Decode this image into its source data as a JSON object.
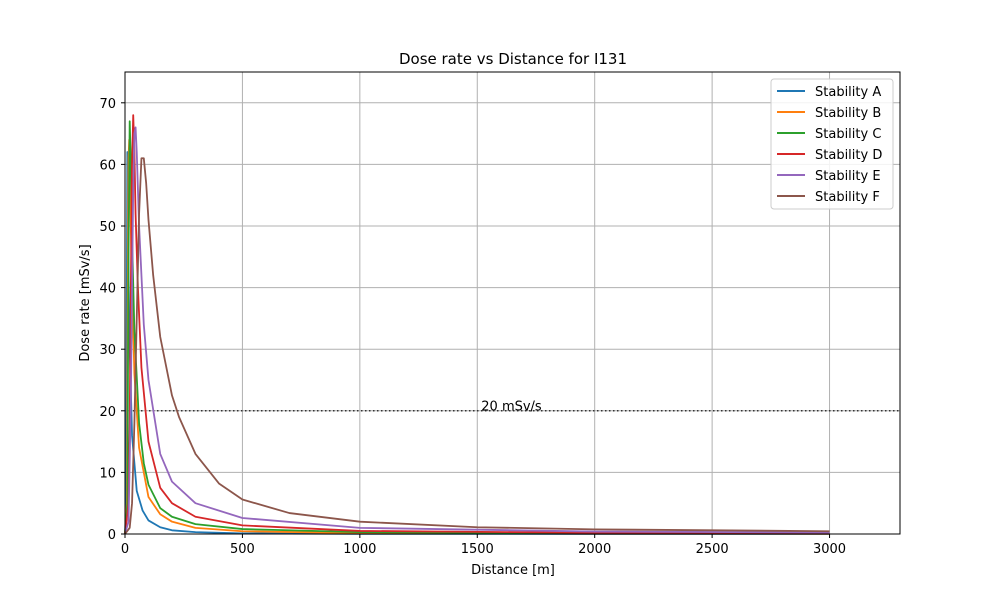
{
  "chart_data": {
    "type": "line",
    "title": "Dose rate vs Distance for I131",
    "xlabel": "Distance [m]",
    "ylabel": "Dose rate [mSv/s]",
    "xlim": [
      0,
      3300
    ],
    "ylim": [
      0,
      75
    ],
    "xticks": [
      0,
      500,
      1000,
      1500,
      2000,
      2500,
      3000
    ],
    "yticks": [
      0,
      10,
      20,
      30,
      40,
      50,
      60,
      70
    ],
    "grid": true,
    "legend_position": "top-right",
    "reference_line": {
      "y": 20,
      "label": "20 mSv/s",
      "label_x": 1500,
      "style": "dotted",
      "color": "#333333"
    },
    "series": [
      {
        "name": "Stability A",
        "color": "#1f77b4",
        "x": [
          0,
          5,
          8,
          10,
          12,
          15,
          20,
          30,
          50,
          75,
          100,
          150,
          200,
          300,
          500,
          1000,
          2000,
          3000
        ],
        "y": [
          0,
          5,
          40,
          62,
          55,
          42,
          30,
          16,
          7,
          3.8,
          2.2,
          1.1,
          0.6,
          0.3,
          0.1,
          0.03,
          0.01,
          0
        ]
      },
      {
        "name": "Stability B",
        "color": "#ff7f0e",
        "x": [
          0,
          8,
          12,
          15,
          18,
          22,
          30,
          40,
          60,
          100,
          150,
          200,
          300,
          500,
          1000,
          2000,
          3000
        ],
        "y": [
          0,
          5,
          40,
          61,
          64,
          55,
          40,
          26,
          14,
          6,
          3.2,
          2,
          1,
          0.45,
          0.15,
          0.05,
          0.03
        ]
      },
      {
        "name": "Stability C",
        "color": "#2ca02c",
        "x": [
          0,
          10,
          15,
          20,
          25,
          30,
          40,
          60,
          80,
          100,
          150,
          200,
          300,
          500,
          1000,
          2000,
          3000
        ],
        "y": [
          0,
          5,
          45,
          67,
          60,
          48,
          33,
          18,
          11.5,
          8,
          4.2,
          2.8,
          1.6,
          0.8,
          0.3,
          0.12,
          0.07
        ]
      },
      {
        "name": "Stability D",
        "color": "#d62728",
        "x": [
          0,
          15,
          20,
          25,
          30,
          35,
          40,
          45,
          55,
          70,
          100,
          150,
          200,
          300,
          500,
          1000,
          2000,
          3000
        ],
        "y": [
          0,
          5,
          18,
          40,
          60,
          68,
          62,
          52,
          40,
          27,
          15,
          7.5,
          5,
          2.8,
          1.4,
          0.5,
          0.2,
          0.12
        ]
      },
      {
        "name": "Stability E",
        "color": "#9467bd",
        "x": [
          0,
          15,
          25,
          30,
          35,
          40,
          45,
          50,
          60,
          80,
          100,
          150,
          200,
          300,
          500,
          1000,
          2000,
          3000
        ],
        "y": [
          0,
          2,
          22,
          40,
          56,
          65,
          66,
          62,
          50,
          34,
          25,
          13,
          8.5,
          5,
          2.6,
          1,
          0.4,
          0.25
        ]
      },
      {
        "name": "Stability F",
        "color": "#8c564b",
        "x": [
          0,
          20,
          30,
          40,
          50,
          60,
          70,
          80,
          90,
          100,
          120,
          150,
          200,
          230,
          300,
          400,
          500,
          700,
          1000,
          1500,
          2000,
          3000
        ],
        "y": [
          0,
          1,
          5,
          18,
          35,
          52,
          61,
          61,
          57,
          51,
          42,
          32,
          22.5,
          19,
          13,
          8.2,
          5.6,
          3.4,
          2,
          1.1,
          0.75,
          0.45
        ]
      }
    ]
  }
}
